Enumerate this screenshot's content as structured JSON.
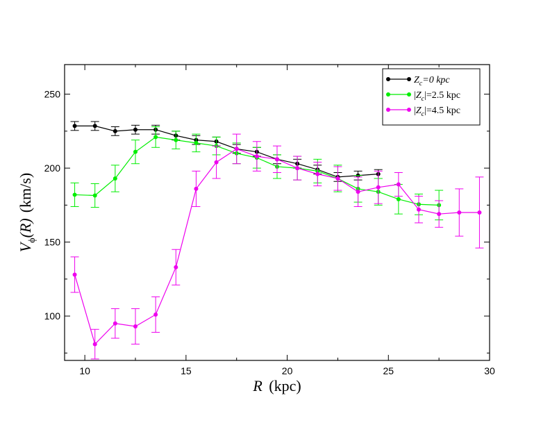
{
  "chart_data": {
    "type": "line",
    "title": "",
    "xlabel_symbol": "R",
    "xlabel_unit": "(kpc)",
    "ylabel_symbol": "V",
    "ylabel_subscript": "ϕ",
    "ylabel_arg": "(R)",
    "ylabel_unit": "(km/s)",
    "xlim": [
      9,
      30
    ],
    "ylim": [
      70,
      270
    ],
    "xticks": [
      10,
      15,
      20,
      25,
      30
    ],
    "yticks": [
      100,
      150,
      200,
      250
    ],
    "x_minor_step": 2.5,
    "y_minor_step": 25,
    "legend_position": "top-right",
    "series": [
      {
        "name": "Z_c=0 kpc",
        "legend_parts": [
          "Z",
          "c",
          "=0  kpc"
        ],
        "color": "#000000",
        "x": [
          9.5,
          10.5,
          11.5,
          12.5,
          13.5,
          14.5,
          15.5,
          16.5,
          17.5,
          18.5,
          19.5,
          20.5,
          21.5,
          22.5,
          23.5,
          24.5
        ],
        "values": [
          228.5,
          228.5,
          225,
          226,
          226,
          222,
          219,
          218,
          213,
          211,
          206,
          203,
          199,
          194,
          195,
          196
        ],
        "errors": [
          3,
          3,
          3,
          3,
          3,
          3,
          3,
          3,
          3,
          3,
          3,
          3,
          3,
          3,
          3,
          3
        ]
      },
      {
        "name": "|Z_c|=2.5 kpc",
        "legend_parts": [
          "|Z",
          "c",
          "|=2.5  kpc"
        ],
        "color": "#00ee00",
        "x": [
          9.5,
          10.5,
          11.5,
          12.5,
          13.5,
          14.5,
          15.5,
          16.5,
          17.5,
          18.5,
          19.5,
          20.5,
          21.5,
          22.5,
          23.5,
          24.5,
          25.5,
          26.5,
          27.5
        ],
        "values": [
          182,
          181.5,
          193,
          211,
          221,
          219,
          217,
          215,
          210,
          207,
          201,
          200,
          198,
          193,
          186,
          184,
          179,
          175.5,
          175
        ],
        "errors": [
          8,
          8,
          9,
          8,
          7,
          6,
          6,
          6,
          7,
          7,
          8,
          8,
          8,
          9,
          9,
          9,
          10,
          7,
          10
        ]
      },
      {
        "name": "|Z_c|=4.5 kpc",
        "legend_parts": [
          "|Z",
          "c",
          "|=4.5  kpc"
        ],
        "color": "#ee00ee",
        "x": [
          9.5,
          10.5,
          11.5,
          12.5,
          13.5,
          14.5,
          15.5,
          16.5,
          17.5,
          18.5,
          19.5,
          20.5,
          21.5,
          22.5,
          23.5,
          24.5,
          25.5,
          26.5,
          27.5,
          28.5,
          29.5
        ],
        "values": [
          128,
          81,
          95,
          93,
          101,
          133,
          186,
          204,
          213,
          208,
          206,
          200,
          196,
          193,
          184,
          187,
          189,
          172,
          169,
          170,
          170
        ],
        "errors": [
          12,
          10,
          10,
          12,
          12,
          12,
          12,
          11,
          10,
          10,
          9,
          8,
          8,
          8,
          10,
          11,
          8,
          9,
          9,
          16,
          24
        ]
      }
    ]
  }
}
